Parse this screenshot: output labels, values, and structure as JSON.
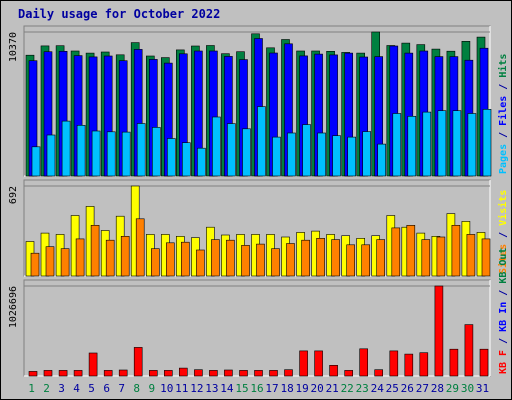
{
  "chart_data": {
    "type": "bar",
    "title": "Daily usage for October 2022",
    "days": [
      1,
      2,
      3,
      4,
      5,
      6,
      7,
      8,
      9,
      10,
      11,
      12,
      13,
      14,
      15,
      16,
      17,
      18,
      19,
      20,
      21,
      22,
      23,
      24,
      25,
      26,
      27,
      28,
      29,
      30,
      31
    ],
    "weekend_days": [
      1,
      2,
      8,
      9,
      15,
      16,
      22,
      23,
      29,
      30
    ],
    "colors": {
      "hits": "#008040",
      "files": "#0000ff",
      "pages": "#00c0ff",
      "visits": "#ffff00",
      "sites": "#ff8000",
      "kbytes": "#ff0000",
      "weekday_label": "#0000a0",
      "weekend_label": "#008040"
    },
    "panels": [
      {
        "id": "hits_files_pages",
        "max_label": "10370",
        "ymax": 10370,
        "right_label_parts": [
          {
            "text": "Pages",
            "color": "#00c0ff"
          },
          {
            "text": " / ",
            "color": "#0000a0"
          },
          {
            "text": "Files",
            "color": "#0000ff"
          },
          {
            "text": " / ",
            "color": "#0000a0"
          },
          {
            "text": "Hits",
            "color": "#008040"
          }
        ],
        "series": [
          {
            "name": "Hits",
            "key": "hits",
            "values": [
              8700,
              9370,
              9380,
              9000,
              8850,
              8930,
              8730,
              9610,
              8640,
              8530,
              9080,
              9360,
              9400,
              8810,
              8950,
              10240,
              9230,
              9830,
              9000,
              9000,
              8980,
              8900,
              8850,
              10370,
              9400,
              9570,
              9460,
              9140,
              8990,
              9700,
              10000
            ]
          },
          {
            "name": "Files",
            "key": "files",
            "values": [
              8300,
              8950,
              8980,
              8670,
              8580,
              8640,
              8300,
              9120,
              8400,
              8130,
              8800,
              9000,
              9000,
              8610,
              8380,
              9900,
              8860,
              9520,
              8650,
              8780,
              8720,
              8850,
              8570,
              8600,
              9360,
              8850,
              9000,
              8600,
              8600,
              8340,
              9200
            ]
          },
          {
            "name": "Pages",
            "key": "pages",
            "values": [
              2100,
              2950,
              3950,
              3650,
              3240,
              3180,
              3160,
              3780,
              3500,
              2700,
              2400,
              2000,
              4250,
              3770,
              3400,
              5000,
              2800,
              3100,
              3700,
              3100,
              2900,
              2800,
              3200,
              2300,
              4500,
              4300,
              4600,
              4700,
              4700,
              4500,
              4800
            ]
          }
        ]
      },
      {
        "id": "visits_sites",
        "max_label": "692",
        "ymax": 692,
        "right_label_parts": [
          {
            "text": "Sites",
            "color": "#ff8000"
          },
          {
            "text": " / ",
            "color": "#0000a0"
          },
          {
            "text": "Visits",
            "color": "#ffff00"
          }
        ],
        "series": [
          {
            "name": "Visits",
            "key": "visits",
            "values": [
              265,
              330,
              320,
              465,
              535,
              350,
              460,
              692,
              320,
              320,
              305,
              295,
              375,
              315,
              320,
              320,
              320,
              300,
              335,
              345,
              320,
              310,
              290,
              310,
              465,
              375,
              330,
              305,
              480,
              420,
              335
            ]
          },
          {
            "name": "Sites",
            "key": "sites",
            "values": [
              175,
              225,
              210,
              285,
              390,
              275,
              305,
              440,
              210,
              255,
              260,
              200,
              280,
              275,
              235,
              245,
              210,
              250,
              275,
              290,
              280,
              240,
              240,
              280,
              370,
              390,
              280,
              300,
              390,
              320,
              285
            ]
          }
        ]
      },
      {
        "id": "kbytes",
        "max_label": "1026696",
        "ymax": 1026696,
        "right_label_parts": [
          {
            "text": "KB F",
            "color": "#ff0000"
          },
          {
            "text": " / ",
            "color": "#0000a0"
          },
          {
            "text": "KB In",
            "color": "#0000ff"
          },
          {
            "text": " / ",
            "color": "#0000a0"
          },
          {
            "text": "KB Out",
            "color": "#008040"
          }
        ],
        "series": [
          {
            "name": "KB F",
            "key": "kbytes",
            "values": [
              52000,
              64000,
              64000,
              64000,
              262000,
              64000,
              68000,
              326000,
              64000,
              64000,
              90000,
              72000,
              64000,
              68000,
              64000,
              64000,
              64000,
              72000,
              286000,
              286000,
              122000,
              64000,
              310000,
              72000,
              286000,
              250000,
              266000,
              1026696,
              306000,
              586000,
              306000
            ]
          }
        ]
      }
    ]
  }
}
